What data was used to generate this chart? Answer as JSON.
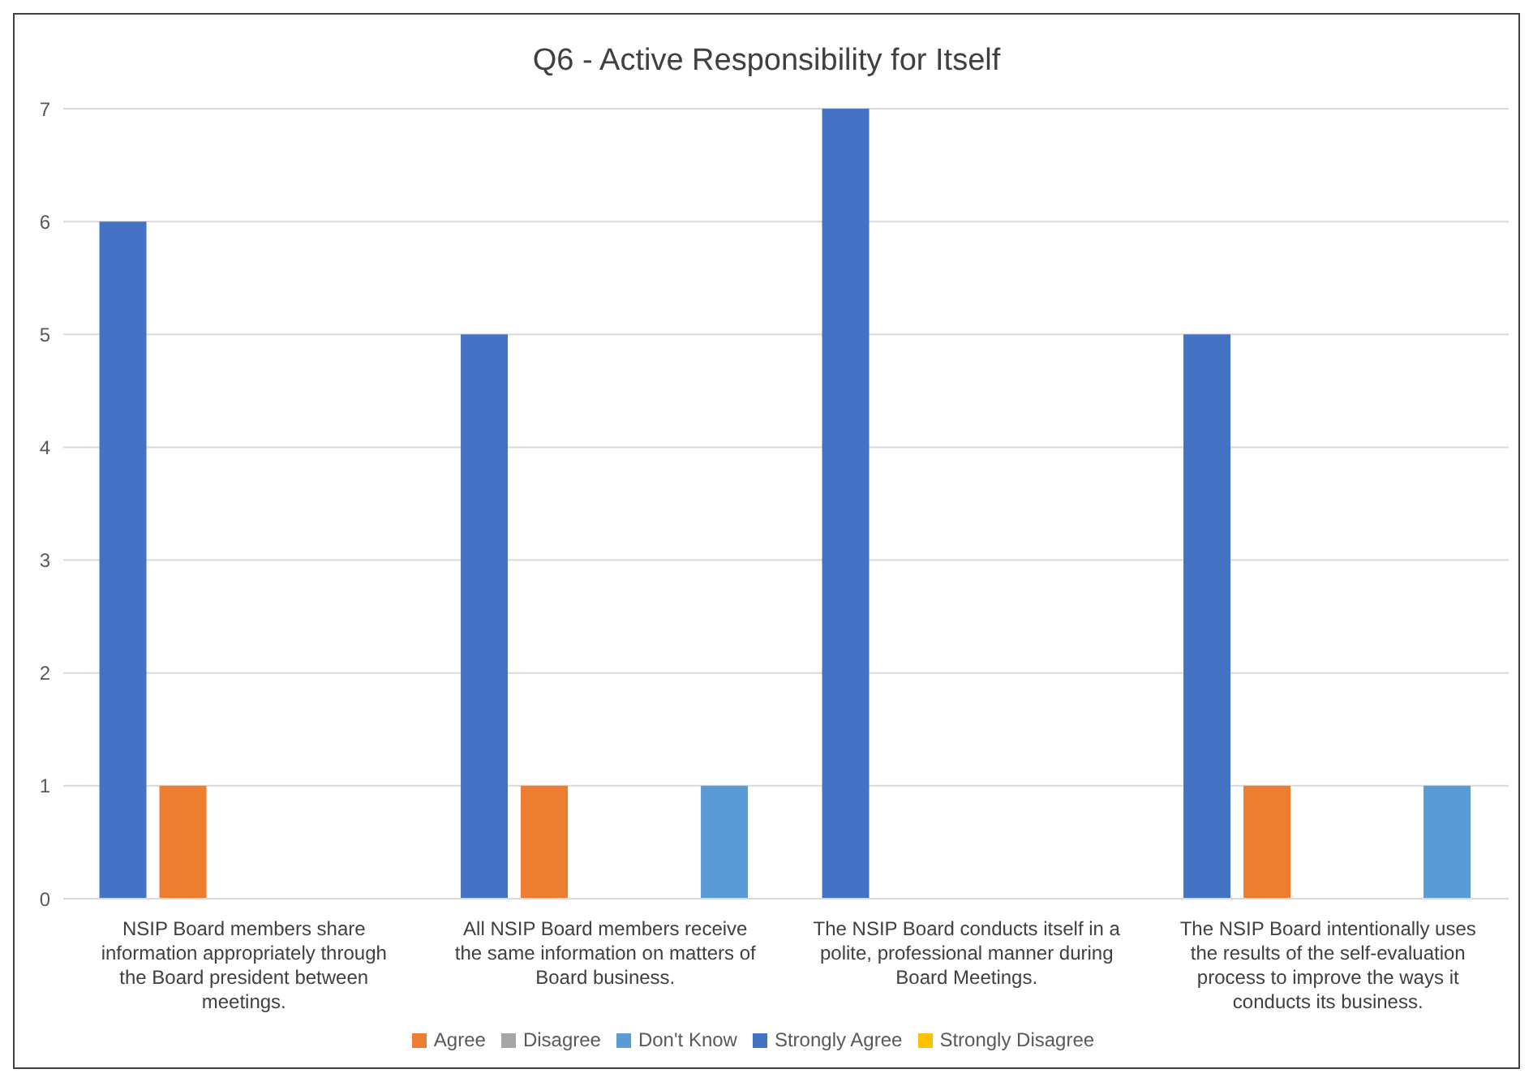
{
  "chart_data": {
    "type": "bar",
    "title": "Q6 - Active Responsibility for Itself",
    "categories": [
      "NSIP Board members share information appropriately through the Board president between meetings.",
      "All NSIP Board members receive the same information on matters of Board business.",
      "The NSIP Board conducts itself in a polite, professional manner during Board Meetings.",
      "The NSIP Board intentionally uses the results of the self-evaluation process to improve the ways it conducts its business."
    ],
    "series": [
      {
        "name": "Strongly Agree",
        "color": "#4472c4",
        "values": [
          6,
          5,
          7,
          5
        ]
      },
      {
        "name": "Agree",
        "color": "#ed7d31",
        "values": [
          1,
          1,
          0,
          1
        ]
      },
      {
        "name": "Disagree",
        "color": "#a5a5a5",
        "values": [
          0,
          0,
          0,
          0
        ]
      },
      {
        "name": "Strongly Disagree",
        "color": "#ffc000",
        "values": [
          0,
          0,
          0,
          0
        ]
      },
      {
        "name": "Don't Know",
        "color": "#5b9bd5",
        "values": [
          0,
          1,
          0,
          1
        ]
      }
    ],
    "ylim": [
      0,
      7
    ],
    "yticks": [
      0,
      1,
      2,
      3,
      4,
      5,
      6,
      7
    ],
    "grid": "y",
    "legend": "bottom"
  }
}
